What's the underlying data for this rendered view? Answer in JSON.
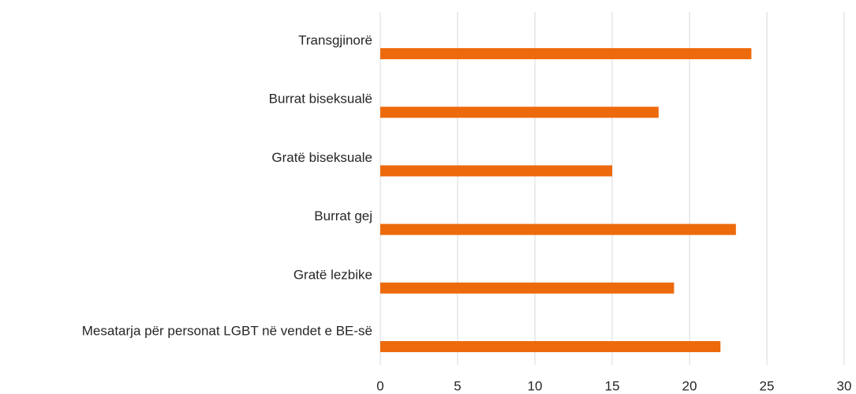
{
  "chart_data": {
    "type": "bar",
    "orientation": "horizontal",
    "categories": [
      "Transgjinorë",
      "Burrat biseksualë",
      "Gratë biseksuale",
      "Burrat gej",
      "Gratë lezbike",
      "Mesatarja për personat LGBT në vendet e BE-së"
    ],
    "values": [
      24,
      18,
      15,
      23,
      19,
      22
    ],
    "color": "#ed6a0c",
    "xlim": [
      0,
      30
    ],
    "xticks": [
      0,
      5,
      10,
      15,
      20,
      25,
      30
    ],
    "grid": true
  }
}
